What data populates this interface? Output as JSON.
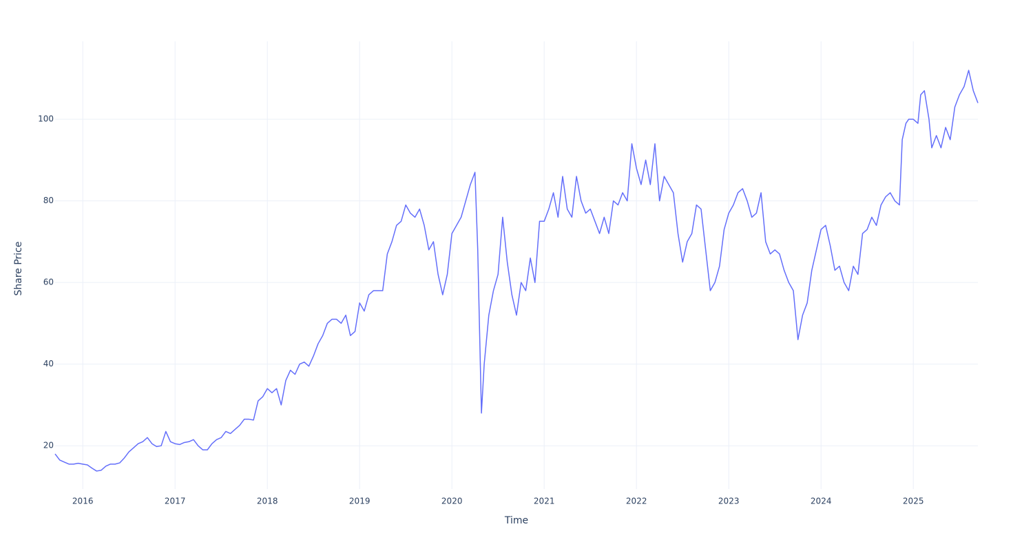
{
  "chart_data": {
    "type": "line",
    "x_label": "Time",
    "y_label": "Share Price",
    "color": "#636efa",
    "grid": true,
    "xlim": [
      2015.7,
      2025.7
    ],
    "xticks": [
      2016,
      2017,
      2018,
      2019,
      2020,
      2021,
      2022,
      2023,
      2024,
      2025
    ],
    "ylim": [
      9.4,
      119.1
    ],
    "yticks": [
      20,
      40,
      60,
      80,
      100
    ],
    "x": [
      2015.7,
      2015.75,
      2015.8,
      2015.85,
      2015.9,
      2015.95,
      2016.0,
      2016.05,
      2016.1,
      2016.15,
      2016.2,
      2016.25,
      2016.3,
      2016.35,
      2016.4,
      2016.45,
      2016.5,
      2016.55,
      2016.6,
      2016.65,
      2016.7,
      2016.75,
      2016.8,
      2016.85,
      2016.9,
      2016.95,
      2017.0,
      2017.05,
      2017.1,
      2017.15,
      2017.2,
      2017.25,
      2017.3,
      2017.35,
      2017.4,
      2017.45,
      2017.5,
      2017.55,
      2017.6,
      2017.65,
      2017.7,
      2017.75,
      2017.8,
      2017.85,
      2017.9,
      2017.95,
      2018.0,
      2018.05,
      2018.1,
      2018.15,
      2018.2,
      2018.25,
      2018.3,
      2018.35,
      2018.4,
      2018.45,
      2018.5,
      2018.55,
      2018.6,
      2018.65,
      2018.7,
      2018.75,
      2018.8,
      2018.85,
      2018.9,
      2018.95,
      2019.0,
      2019.05,
      2019.1,
      2019.15,
      2019.2,
      2019.25,
      2019.3,
      2019.35,
      2019.4,
      2019.45,
      2019.5,
      2019.55,
      2019.6,
      2019.65,
      2019.7,
      2019.75,
      2019.8,
      2019.85,
      2019.9,
      2019.95,
      2020.0,
      2020.05,
      2020.1,
      2020.15,
      2020.2,
      2020.25,
      2020.28,
      2020.3,
      2020.32,
      2020.35,
      2020.4,
      2020.45,
      2020.5,
      2020.55,
      2020.6,
      2020.65,
      2020.7,
      2020.75,
      2020.8,
      2020.85,
      2020.9,
      2020.95,
      2021.0,
      2021.05,
      2021.1,
      2021.15,
      2021.2,
      2021.25,
      2021.3,
      2021.35,
      2021.4,
      2021.45,
      2021.5,
      2021.55,
      2021.6,
      2021.65,
      2021.7,
      2021.75,
      2021.8,
      2021.85,
      2021.9,
      2021.95,
      2022.0,
      2022.05,
      2022.1,
      2022.15,
      2022.2,
      2022.25,
      2022.3,
      2022.35,
      2022.4,
      2022.45,
      2022.5,
      2022.55,
      2022.6,
      2022.65,
      2022.7,
      2022.75,
      2022.8,
      2022.85,
      2022.9,
      2022.95,
      2023.0,
      2023.05,
      2023.1,
      2023.15,
      2023.2,
      2023.25,
      2023.3,
      2023.35,
      2023.4,
      2023.45,
      2023.5,
      2023.55,
      2023.6,
      2023.65,
      2023.7,
      2023.75,
      2023.8,
      2023.85,
      2023.9,
      2023.95,
      2024.0,
      2024.05,
      2024.1,
      2024.15,
      2024.2,
      2024.25,
      2024.3,
      2024.35,
      2024.4,
      2024.45,
      2024.5,
      2024.55,
      2024.6,
      2024.65,
      2024.7,
      2024.75,
      2024.8,
      2024.85,
      2024.88,
      2024.92,
      2024.95,
      2025.0,
      2025.05,
      2025.08,
      2025.12,
      2025.17,
      2025.2,
      2025.25,
      2025.3,
      2025.35,
      2025.4,
      2025.45,
      2025.5,
      2025.55,
      2025.6,
      2025.65,
      2025.7
    ],
    "values": [
      18,
      16.5,
      16,
      15.5,
      15.5,
      15.7,
      15.5,
      15.3,
      14.5,
      13.8,
      14,
      15,
      15.5,
      15.5,
      15.8,
      17,
      18.5,
      19.5,
      20.5,
      21,
      22,
      20.5,
      19.8,
      20,
      23.5,
      21,
      20.5,
      20.3,
      20.8,
      21,
      21.5,
      20,
      19,
      19,
      20.5,
      21.5,
      22,
      23.5,
      23,
      24,
      25,
      26.5,
      26.5,
      26.3,
      31,
      32,
      34,
      33,
      34,
      30,
      36,
      38.5,
      37.5,
      40,
      40.5,
      39.5,
      42,
      45,
      47,
      50,
      51,
      51,
      50,
      52,
      47,
      48,
      55,
      53,
      57,
      58,
      58,
      58,
      67,
      70,
      74,
      75,
      79,
      77,
      76,
      78,
      74,
      68,
      70,
      62,
      57,
      62,
      72,
      74,
      76,
      80,
      84,
      87,
      68,
      48,
      28,
      40,
      52,
      58,
      62,
      76,
      65,
      57,
      52,
      60,
      58,
      66,
      60,
      75,
      75,
      78,
      82,
      76,
      86,
      78,
      76,
      86,
      80,
      77,
      78,
      75,
      72,
      76,
      72,
      80,
      79,
      82,
      80,
      94,
      88,
      84,
      90,
      84,
      94,
      80,
      86,
      84,
      82,
      72,
      65,
      70,
      72,
      79,
      78,
      68,
      58,
      60,
      64,
      73,
      77,
      79,
      82,
      83,
      80,
      76,
      77,
      82,
      70,
      67,
      68,
      67,
      63,
      60,
      58,
      46,
      52,
      55,
      63,
      68,
      73,
      74,
      69,
      63,
      64,
      60,
      58,
      64,
      62,
      72,
      73,
      76,
      74,
      79,
      81,
      82,
      80,
      79,
      95,
      99,
      100,
      100,
      99,
      106,
      107,
      100,
      93,
      96,
      93,
      98,
      95,
      103,
      106,
      108,
      112,
      107,
      104
    ]
  }
}
